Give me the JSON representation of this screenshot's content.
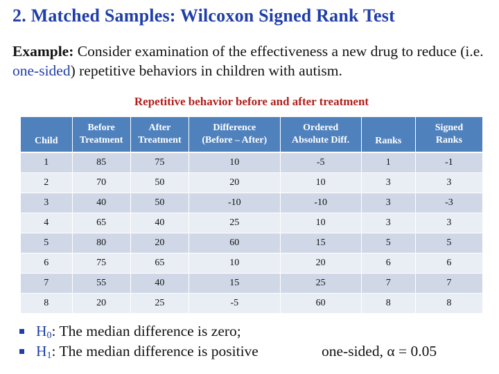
{
  "slide": {
    "title": "2. Matched Samples: Wilcoxon Signed Rank Test",
    "example": {
      "lead": "Example:",
      "text_1": " Consider examination of the effectiveness a new drug to reduce (i.e. ",
      "highlight": "one-sided",
      "text_2": ") repetitive behaviors in children with autism."
    },
    "table_caption": "Repetitive behavior before and after treatment"
  },
  "table": {
    "headers": [
      [
        "Child",
        ""
      ],
      [
        "Before",
        "Treatment"
      ],
      [
        "After",
        "Treatment"
      ],
      [
        "Difference",
        "(Before – After)"
      ],
      [
        "Ordered",
        "Absolute Diff."
      ],
      [
        "Ranks",
        ""
      ],
      [
        "Signed",
        "Ranks"
      ]
    ],
    "rows": [
      [
        "1",
        "85",
        "75",
        "10",
        "-5",
        "1",
        "-1"
      ],
      [
        "2",
        "70",
        "50",
        "20",
        "10",
        "3",
        "3"
      ],
      [
        "3",
        "40",
        "50",
        "-10",
        "-10",
        "3",
        "-3"
      ],
      [
        "4",
        "65",
        "40",
        "25",
        "10",
        "3",
        "3"
      ],
      [
        "5",
        "80",
        "20",
        "60",
        "15",
        "5",
        "5"
      ],
      [
        "6",
        "75",
        "65",
        "10",
        "20",
        "6",
        "6"
      ],
      [
        "7",
        "55",
        "40",
        "15",
        "25",
        "7",
        "7"
      ],
      [
        "8",
        "20",
        "25",
        "-5",
        "60",
        "8",
        "8"
      ]
    ]
  },
  "hypotheses": [
    {
      "symbol": "H",
      "sub": "0",
      "text": ": The median difference is zero;",
      "note": ""
    },
    {
      "symbol": "H",
      "sub": "1",
      "text": ": The median difference is positive",
      "note": "one-sided, α = 0.05"
    }
  ],
  "colors": {
    "title": "#1f3ea8",
    "caption": "#b0201c",
    "header_bg": "#4f81bd",
    "row_odd": "#d0d8e8",
    "row_even": "#e9edf4"
  }
}
